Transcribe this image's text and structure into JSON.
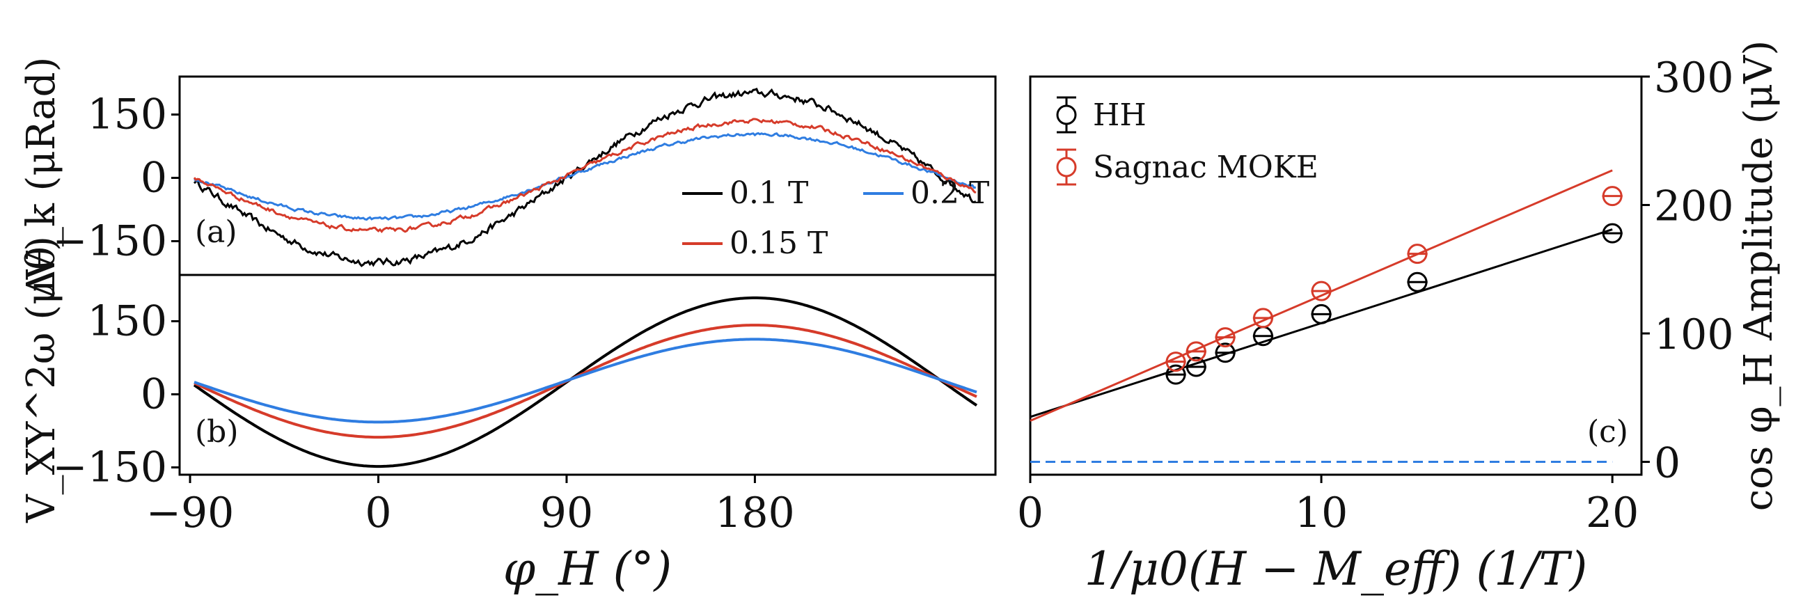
{
  "chart_data": [
    {
      "panel": "(a)",
      "type": "line",
      "ylabel": "Δθ_k (μRad)",
      "xlim": [
        -95,
        295
      ],
      "ylim": [
        -230,
        240
      ],
      "yticks": [
        -150,
        0,
        150
      ],
      "ytick_labels": [
        "−150",
        "0",
        "150"
      ],
      "series": [
        {
          "name": "0.1 T",
          "label": "0.1 T",
          "color": "#000000",
          "amplitude": 200,
          "offset": 0,
          "noise": 7
        },
        {
          "name": "0.2 T",
          "label": "0.2 T",
          "color": "#2f7de1",
          "amplitude": 100,
          "offset": 3,
          "noise": 3
        },
        {
          "name": "0.15 T",
          "label": "0.15 T",
          "color": "#d63b2a",
          "amplitude": 130,
          "offset": 5,
          "noise": 4
        }
      ]
    },
    {
      "panel": "(b)",
      "type": "line",
      "ylabel": "V_XY^2ω (μV)",
      "xlabel": "φ_H (°)",
      "xlim": [
        -95,
        295
      ],
      "ylim": [
        -165,
        245
      ],
      "xticks": [
        -90,
        0,
        90,
        180
      ],
      "xtick_labels": [
        "−90",
        "0",
        "90",
        "180"
      ],
      "yticks": [
        -150,
        0,
        150
      ],
      "ytick_labels": [
        "−150",
        "0",
        "150"
      ],
      "series": [
        {
          "name": "0.1 T",
          "color": "#000000",
          "amplitude": 173,
          "offset": 25
        },
        {
          "name": "0.15 T",
          "color": "#d63b2a",
          "amplitude": 115,
          "offset": 27
        },
        {
          "name": "0.2 T",
          "color": "#2f7de1",
          "amplitude": 85,
          "offset": 28
        }
      ]
    },
    {
      "panel": "(c)",
      "type": "scatter",
      "xlabel": "1/μ0(H − M_eff) (1/T)",
      "ylabel": "cos φ_H Amplitude (μV)",
      "xlim": [
        0,
        21
      ],
      "ylim": [
        -10,
        300
      ],
      "xticks": [
        0,
        10,
        20
      ],
      "xtick_labels": [
        "0",
        "10",
        "20"
      ],
      "yticks": [
        0,
        100,
        200,
        300
      ],
      "ytick_labels": [
        "0",
        "100",
        "200",
        "300"
      ],
      "series": [
        {
          "name": "HH",
          "label": "HH",
          "color": "#000000",
          "x": [
            5,
            5.7,
            6.7,
            8,
            10,
            13.3,
            20
          ],
          "y": [
            68,
            74,
            85,
            98,
            115,
            140,
            178
          ],
          "xerr": 0.35,
          "fit": {
            "slope": 7.3,
            "intercept": 35
          }
        },
        {
          "name": "Sagnac MOKE",
          "label": "Sagnac MOKE",
          "color": "#d63b2a",
          "x": [
            5,
            5.7,
            6.7,
            8,
            10,
            13.3,
            20
          ],
          "y": [
            78,
            86,
            97,
            112,
            133,
            162,
            207
          ],
          "xerr": 0.35,
          "fit": {
            "slope": 9.75,
            "intercept": 32
          }
        },
        {
          "name": "zero",
          "color": "#2f7de1",
          "dashed": true,
          "x": [
            0,
            20
          ],
          "y": [
            0,
            0
          ]
        }
      ]
    }
  ]
}
